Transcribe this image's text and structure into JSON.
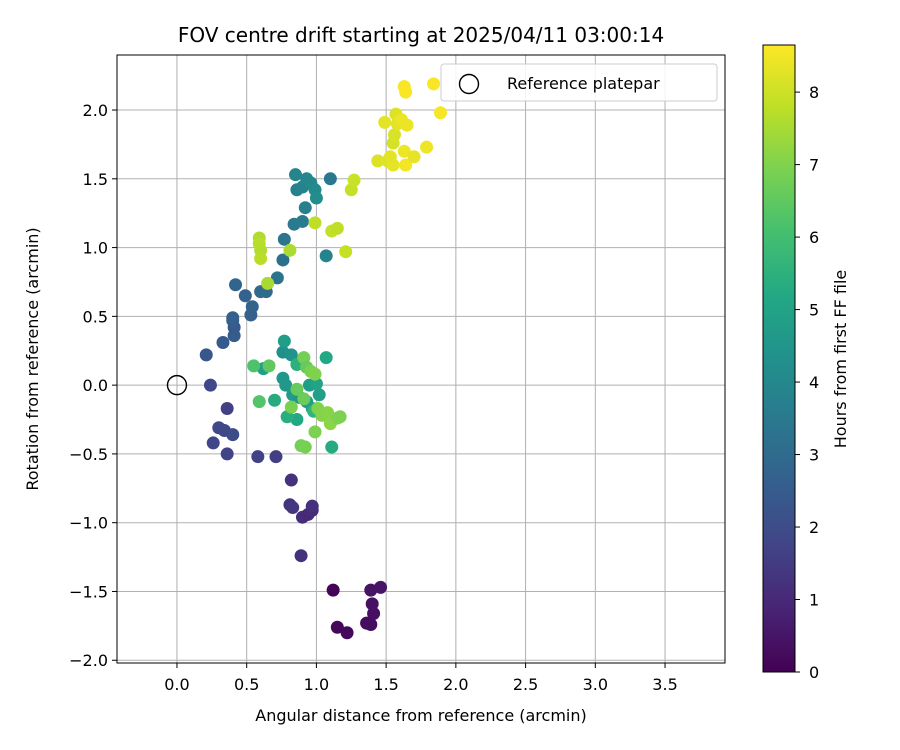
{
  "chart_data": {
    "type": "scatter",
    "title": "FOV centre drift starting at 2025/04/11 03:00:14",
    "xlabel": "Angular distance from reference (arcmin)",
    "ylabel": "Rotation from reference (arcmin)",
    "xlim": [
      -0.43,
      3.93
    ],
    "ylim": [
      -2.02,
      2.4
    ],
    "x_ticks": [
      0.0,
      0.5,
      1.0,
      1.5,
      2.0,
      2.5,
      3.0,
      3.5
    ],
    "x_tick_labels": [
      "0.0",
      "0.5",
      "1.0",
      "1.5",
      "2.0",
      "2.5",
      "3.0",
      "3.5"
    ],
    "y_ticks": [
      -2.0,
      -1.5,
      -1.0,
      -0.5,
      0.0,
      0.5,
      1.0,
      1.5,
      2.0
    ],
    "y_tick_labels": [
      "−2.0",
      "−1.5",
      "−1.0",
      "−0.5",
      "0.0",
      "0.5",
      "1.0",
      "1.5",
      "2.0"
    ],
    "grid": true,
    "legend": {
      "position": "top-right",
      "entries": [
        "Reference platepar"
      ]
    },
    "reference_point": {
      "x": 0.0,
      "y": 0.0,
      "label": "Reference platepar"
    },
    "colorbar": {
      "label": "Hours from first FF file",
      "colormap": "viridis",
      "range": [
        0,
        8.65
      ],
      "ticks": [
        0,
        1,
        2,
        3,
        4,
        5,
        6,
        7,
        8
      ],
      "tick_labels": [
        "0",
        "1",
        "2",
        "3",
        "4",
        "5",
        "6",
        "7",
        "8"
      ]
    },
    "series": [
      {
        "points": [
          {
            "x": 1.12,
            "y": -1.49,
            "c": 0.1
          },
          {
            "x": 1.15,
            "y": -1.76,
            "c": 0.15
          },
          {
            "x": 1.22,
            "y": -1.8,
            "c": 0.2
          },
          {
            "x": 1.36,
            "y": -1.73,
            "c": 0.25
          },
          {
            "x": 1.39,
            "y": -1.74,
            "c": 0.3
          },
          {
            "x": 1.41,
            "y": -1.66,
            "c": 0.35
          },
          {
            "x": 1.4,
            "y": -1.59,
            "c": 0.4
          },
          {
            "x": 1.39,
            "y": -1.49,
            "c": 0.45
          },
          {
            "x": 1.46,
            "y": -1.47,
            "c": 0.5
          },
          {
            "x": 0.89,
            "y": -1.24,
            "c": 1.2
          },
          {
            "x": 0.9,
            "y": -0.96,
            "c": 1.1
          },
          {
            "x": 0.94,
            "y": -0.94,
            "c": 1.0
          },
          {
            "x": 0.97,
            "y": -0.91,
            "c": 1.05
          },
          {
            "x": 0.97,
            "y": -0.88,
            "c": 1.15
          },
          {
            "x": 0.81,
            "y": -0.87,
            "c": 1.3
          },
          {
            "x": 0.83,
            "y": -0.89,
            "c": 1.35
          },
          {
            "x": 0.82,
            "y": -0.69,
            "c": 1.25
          },
          {
            "x": 0.71,
            "y": -0.52,
            "c": 1.6
          },
          {
            "x": 0.58,
            "y": -0.52,
            "c": 1.7
          },
          {
            "x": 0.36,
            "y": -0.5,
            "c": 1.75
          },
          {
            "x": 0.26,
            "y": -0.42,
            "c": 1.8
          },
          {
            "x": 0.3,
            "y": -0.31,
            "c": 1.85
          },
          {
            "x": 0.34,
            "y": -0.33,
            "c": 1.9
          },
          {
            "x": 0.4,
            "y": -0.36,
            "c": 1.95
          },
          {
            "x": 0.36,
            "y": -0.17,
            "c": 1.65
          },
          {
            "x": 0.24,
            "y": 0.0,
            "c": 1.85
          },
          {
            "x": 0.21,
            "y": 0.22,
            "c": 2.3
          },
          {
            "x": 0.33,
            "y": 0.31,
            "c": 2.45
          },
          {
            "x": 0.41,
            "y": 0.36,
            "c": 2.5
          },
          {
            "x": 0.41,
            "y": 0.42,
            "c": 2.4
          },
          {
            "x": 0.4,
            "y": 0.47,
            "c": 2.55
          },
          {
            "x": 0.4,
            "y": 0.49,
            "c": 2.6
          },
          {
            "x": 0.53,
            "y": 0.51,
            "c": 2.7
          },
          {
            "x": 0.54,
            "y": 0.57,
            "c": 2.75
          },
          {
            "x": 0.49,
            "y": 0.65,
            "c": 2.65
          },
          {
            "x": 0.42,
            "y": 0.73,
            "c": 2.8
          },
          {
            "x": 0.6,
            "y": 0.68,
            "c": 2.9
          },
          {
            "x": 0.64,
            "y": 0.68,
            "c": 3.0
          },
          {
            "x": 0.72,
            "y": 0.78,
            "c": 3.3
          },
          {
            "x": 0.76,
            "y": 0.91,
            "c": 3.2
          },
          {
            "x": 0.77,
            "y": 1.06,
            "c": 3.4
          },
          {
            "x": 0.84,
            "y": 1.17,
            "c": 3.5
          },
          {
            "x": 0.9,
            "y": 1.19,
            "c": 3.6
          },
          {
            "x": 0.92,
            "y": 1.29,
            "c": 3.7
          },
          {
            "x": 1.07,
            "y": 0.94,
            "c": 3.8
          },
          {
            "x": 0.86,
            "y": 1.42,
            "c": 3.75
          },
          {
            "x": 0.9,
            "y": 1.44,
            "c": 3.85
          },
          {
            "x": 0.85,
            "y": 1.53,
            "c": 3.9
          },
          {
            "x": 0.93,
            "y": 1.5,
            "c": 3.95
          },
          {
            "x": 0.96,
            "y": 1.47,
            "c": 4.0
          },
          {
            "x": 0.99,
            "y": 1.42,
            "c": 4.1
          },
          {
            "x": 1.0,
            "y": 1.36,
            "c": 4.2
          },
          {
            "x": 1.1,
            "y": 1.5,
            "c": 3.45
          },
          {
            "x": 0.76,
            "y": 0.24,
            "c": 4.3
          },
          {
            "x": 0.82,
            "y": 0.22,
            "c": 4.4
          },
          {
            "x": 0.77,
            "y": 0.32,
            "c": 4.8
          },
          {
            "x": 0.76,
            "y": 0.05,
            "c": 4.5
          },
          {
            "x": 0.78,
            "y": 0.0,
            "c": 4.6
          },
          {
            "x": 0.83,
            "y": -0.07,
            "c": 4.7
          },
          {
            "x": 0.88,
            "y": -0.09,
            "c": 4.55
          },
          {
            "x": 0.93,
            "y": -0.12,
            "c": 4.65
          },
          {
            "x": 0.95,
            "y": 0.0,
            "c": 4.75
          },
          {
            "x": 0.97,
            "y": -0.17,
            "c": 4.85
          },
          {
            "x": 1.02,
            "y": -0.07,
            "c": 4.9
          },
          {
            "x": 1.0,
            "y": 0.01,
            "c": 4.95
          },
          {
            "x": 0.62,
            "y": 0.12,
            "c": 4.9
          },
          {
            "x": 1.07,
            "y": 0.2,
            "c": 5.2
          },
          {
            "x": 1.11,
            "y": -0.45,
            "c": 5.3
          },
          {
            "x": 0.86,
            "y": -0.25,
            "c": 5.2
          },
          {
            "x": 0.79,
            "y": -0.23,
            "c": 5.4
          },
          {
            "x": 0.7,
            "y": -0.11,
            "c": 5.3
          },
          {
            "x": 0.86,
            "y": 0.15,
            "c": 5.5
          },
          {
            "x": 0.98,
            "y": -0.19,
            "c": 5.6
          },
          {
            "x": 0.55,
            "y": 0.14,
            "c": 6.2
          },
          {
            "x": 0.59,
            "y": -0.12,
            "c": 6.3
          },
          {
            "x": 0.66,
            "y": 0.14,
            "c": 6.5
          },
          {
            "x": 0.86,
            "y": -0.03,
            "c": 6.6
          },
          {
            "x": 0.91,
            "y": -0.1,
            "c": 6.7
          },
          {
            "x": 0.91,
            "y": 0.2,
            "c": 6.8
          },
          {
            "x": 0.93,
            "y": 0.13,
            "c": 6.6
          },
          {
            "x": 0.96,
            "y": 0.1,
            "c": 6.9
          },
          {
            "x": 0.99,
            "y": 0.08,
            "c": 7.0
          },
          {
            "x": 0.82,
            "y": -0.16,
            "c": 6.9
          },
          {
            "x": 0.89,
            "y": -0.44,
            "c": 6.8
          },
          {
            "x": 0.99,
            "y": -0.34,
            "c": 6.95
          },
          {
            "x": 1.01,
            "y": -0.17,
            "c": 7.0
          },
          {
            "x": 1.04,
            "y": -0.22,
            "c": 7.05
          },
          {
            "x": 1.08,
            "y": -0.2,
            "c": 7.1
          },
          {
            "x": 1.1,
            "y": -0.28,
            "c": 7.15
          },
          {
            "x": 1.15,
            "y": -0.24,
            "c": 7.0
          },
          {
            "x": 1.17,
            "y": -0.23,
            "c": 6.95
          },
          {
            "x": 0.92,
            "y": -0.45,
            "c": 6.85
          },
          {
            "x": 0.59,
            "y": 1.07,
            "c": 7.6
          },
          {
            "x": 0.59,
            "y": 1.03,
            "c": 7.7
          },
          {
            "x": 0.6,
            "y": 0.98,
            "c": 7.65
          },
          {
            "x": 0.6,
            "y": 0.92,
            "c": 7.75
          },
          {
            "x": 0.65,
            "y": 0.74,
            "c": 7.5
          },
          {
            "x": 0.81,
            "y": 0.98,
            "c": 7.55
          },
          {
            "x": 0.99,
            "y": 1.18,
            "c": 7.8
          },
          {
            "x": 1.11,
            "y": 1.12,
            "c": 7.85
          },
          {
            "x": 1.15,
            "y": 1.14,
            "c": 7.8
          },
          {
            "x": 1.21,
            "y": 0.97,
            "c": 7.9
          },
          {
            "x": 1.25,
            "y": 1.42,
            "c": 7.9
          },
          {
            "x": 1.27,
            "y": 1.49,
            "c": 7.95
          },
          {
            "x": 1.44,
            "y": 1.63,
            "c": 8.2
          },
          {
            "x": 1.49,
            "y": 1.91,
            "c": 8.3
          },
          {
            "x": 1.51,
            "y": 1.63,
            "c": 8.25
          },
          {
            "x": 1.55,
            "y": 1.6,
            "c": 8.35
          },
          {
            "x": 1.53,
            "y": 1.66,
            "c": 8.3
          },
          {
            "x": 1.55,
            "y": 1.76,
            "c": 8.1
          },
          {
            "x": 1.56,
            "y": 1.82,
            "c": 8.15
          },
          {
            "x": 1.57,
            "y": 1.97,
            "c": 8.2
          },
          {
            "x": 1.58,
            "y": 1.9,
            "c": 8.3
          },
          {
            "x": 1.61,
            "y": 1.93,
            "c": 8.4
          },
          {
            "x": 1.63,
            "y": 1.7,
            "c": 8.45
          },
          {
            "x": 1.64,
            "y": 1.6,
            "c": 8.5
          },
          {
            "x": 1.65,
            "y": 1.89,
            "c": 8.4
          },
          {
            "x": 1.63,
            "y": 2.17,
            "c": 8.55
          },
          {
            "x": 1.64,
            "y": 2.13,
            "c": 8.6
          },
          {
            "x": 1.7,
            "y": 1.66,
            "c": 8.35
          },
          {
            "x": 1.79,
            "y": 1.73,
            "c": 8.45
          },
          {
            "x": 1.84,
            "y": 2.19,
            "c": 8.6
          },
          {
            "x": 1.89,
            "y": 1.98,
            "c": 8.55
          }
        ]
      }
    ]
  }
}
